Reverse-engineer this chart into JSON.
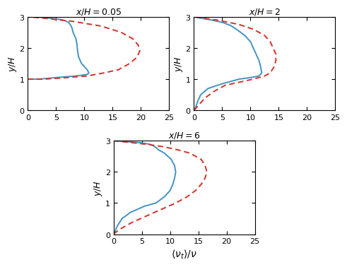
{
  "title1": "$x/H = 0.05$",
  "title2": "$x/H = 2$",
  "title3": "$x/H = 6$",
  "xlabel": "$\\langle \\nu_t \\rangle/\\nu$",
  "ylabel": "$y/H$",
  "xlim": [
    0,
    25
  ],
  "ylim": [
    0,
    3
  ],
  "xticks": [
    0,
    5,
    10,
    15,
    20,
    25
  ],
  "yticks": [
    0,
    1,
    2,
    3
  ],
  "blue_color": "#4393c3",
  "red_color": "#d73027",
  "plot1_blue_y": [
    1.0,
    1.0,
    1.0,
    1.0,
    1.05,
    1.1,
    1.15,
    1.2,
    1.3,
    1.5,
    1.7,
    1.9,
    2.1,
    2.3,
    2.5,
    2.65,
    2.75,
    2.82,
    2.88,
    2.92,
    2.96,
    3.0,
    3.0
  ],
  "plot1_blue_x": [
    0.0,
    0.5,
    1.0,
    2.0,
    5.0,
    8.5,
    10.5,
    10.8,
    10.5,
    9.5,
    9.0,
    8.8,
    8.7,
    8.5,
    8.0,
    7.8,
    7.5,
    7.2,
    6.5,
    5.5,
    3.5,
    1.0,
    0.0
  ],
  "plot1_red_y": [
    1.0,
    1.0,
    1.05,
    1.1,
    1.2,
    1.3,
    1.5,
    1.7,
    1.9,
    2.1,
    2.3,
    2.5,
    2.7,
    2.85,
    2.95,
    3.0
  ],
  "plot1_red_x": [
    0.0,
    3.0,
    7.0,
    10.5,
    13.5,
    16.0,
    18.0,
    19.3,
    19.8,
    19.5,
    18.5,
    16.5,
    13.0,
    8.0,
    3.0,
    0.0
  ],
  "plot2_blue_y": [
    0.0,
    0.02,
    0.05,
    0.1,
    0.15,
    0.2,
    0.3,
    0.5,
    0.7,
    0.85,
    1.0,
    1.05,
    1.1,
    1.2,
    1.4,
    1.6,
    1.8,
    2.0,
    2.2,
    2.4,
    2.6,
    2.72,
    2.82,
    2.9,
    2.96,
    3.0
  ],
  "plot2_blue_x": [
    0.0,
    0.1,
    0.2,
    0.3,
    0.4,
    0.5,
    0.7,
    1.2,
    2.5,
    5.0,
    8.0,
    10.0,
    11.5,
    12.0,
    11.8,
    11.5,
    11.0,
    10.5,
    10.0,
    9.0,
    7.5,
    6.5,
    5.0,
    3.0,
    1.0,
    0.0
  ],
  "plot2_red_y": [
    0.0,
    0.05,
    0.1,
    0.2,
    0.4,
    0.6,
    0.8,
    0.9,
    1.0,
    1.1,
    1.2,
    1.4,
    1.6,
    1.8,
    2.0,
    2.2,
    2.4,
    2.6,
    2.75,
    2.88,
    2.96,
    3.0
  ],
  "plot2_red_x": [
    0.0,
    0.3,
    0.5,
    1.0,
    2.0,
    3.5,
    5.5,
    8.0,
    10.5,
    12.5,
    13.5,
    14.2,
    14.5,
    14.5,
    14.0,
    13.5,
    12.5,
    10.5,
    8.0,
    4.5,
    1.5,
    0.0
  ],
  "plot3_blue_y": [
    0.0,
    0.02,
    0.04,
    0.06,
    0.08,
    0.1,
    0.15,
    0.2,
    0.3,
    0.5,
    0.7,
    0.9,
    1.0,
    1.2,
    1.4,
    1.6,
    1.8,
    2.0,
    2.2,
    2.4,
    2.6,
    2.7,
    2.78,
    2.84,
    2.88,
    2.93,
    2.97,
    3.0
  ],
  "plot3_blue_x": [
    0.0,
    0.05,
    0.1,
    0.15,
    0.2,
    0.3,
    0.4,
    0.5,
    0.8,
    1.5,
    3.0,
    5.5,
    7.5,
    9.0,
    10.0,
    10.5,
    10.8,
    11.0,
    10.8,
    10.2,
    9.0,
    8.0,
    7.5,
    7.0,
    6.5,
    5.0,
    2.0,
    0.0
  ],
  "plot3_red_y": [
    0.0,
    0.05,
    0.1,
    0.2,
    0.3,
    0.4,
    0.5,
    0.6,
    0.8,
    1.0,
    1.2,
    1.4,
    1.6,
    1.8,
    2.0,
    2.2,
    2.4,
    2.6,
    2.7,
    2.8,
    2.88,
    2.95,
    3.0
  ],
  "plot3_red_x": [
    0.0,
    0.3,
    0.7,
    1.5,
    2.5,
    3.5,
    4.8,
    6.0,
    8.5,
    11.0,
    13.0,
    14.5,
    15.5,
    16.2,
    16.5,
    16.2,
    15.5,
    13.5,
    11.5,
    9.0,
    6.0,
    2.5,
    0.0
  ]
}
